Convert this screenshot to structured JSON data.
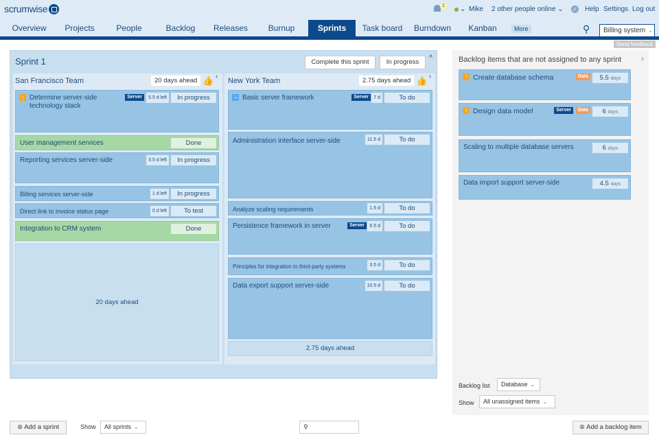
{
  "app": {
    "logo": "scrumwise",
    "notifications": "1",
    "user": "Mike",
    "online": "2 other people online",
    "help": "Help",
    "settings": "Settings",
    "logout": "Log out",
    "project": "Billing system",
    "feedback": "Send feedback",
    "more": "More"
  },
  "tabs": [
    "Overview",
    "Projects",
    "People",
    "Backlog",
    "Releases",
    "Burnup",
    "Sprints",
    "Task board",
    "Burndown",
    "Kanban"
  ],
  "sprint": {
    "title": "Sprint 1",
    "complete_btn": "Complete this sprint",
    "status": "In progress",
    "teams": [
      {
        "name": "San Francisco Team",
        "ahead": "20 days ahead",
        "footer": "20 days ahead",
        "items": [
          {
            "title": "Determine server-side technology stack",
            "tag": "Server",
            "est": "5.5 d left",
            "status": "In progress"
          },
          {
            "title": "User management services",
            "status": "Done"
          },
          {
            "title": "Reporting services server-side",
            "est": "3.5 d left",
            "status": "In progress"
          },
          {
            "title": "Billing services server-side",
            "est": "1 d left",
            "status": "In progress"
          },
          {
            "title": "Direct link to invoice status page",
            "est": "0 d left",
            "status": "To test"
          },
          {
            "title": "Integration to CRM system",
            "status": "Done"
          }
        ]
      },
      {
        "name": "New York Team",
        "ahead": "2.75 days ahead",
        "footer": "2.75 days ahead",
        "items": [
          {
            "title": "Basic server framework",
            "tag": "Server",
            "est": "7 d",
            "status": "To do"
          },
          {
            "title": "Administration interface server-side",
            "est": "11.5 d",
            "status": "To do"
          },
          {
            "title": "Analyze scaling requirements",
            "est": "1.5 d",
            "status": "To do"
          },
          {
            "title": "Persistence framework in server",
            "tag": "Server",
            "est": "6.5 d",
            "status": "To do"
          },
          {
            "title": "Principles for integration to third-party systems",
            "est": "3.5 d",
            "status": "To do"
          },
          {
            "title": "Data export support server-side",
            "est": "10.5 d",
            "status": "To do"
          }
        ]
      }
    ]
  },
  "backlog": {
    "title": "Backlog items that are not assigned to any sprint",
    "days_unit": "days",
    "items": [
      {
        "title": "Create database schema",
        "tags": [
          "Data"
        ],
        "days": "5.5"
      },
      {
        "title": "Design data model",
        "tags": [
          "Server",
          "Data"
        ],
        "days": "6"
      },
      {
        "title": "Scaling to multiple database servers",
        "days": "6"
      },
      {
        "title": "Data import support server-side",
        "days": "4.5"
      }
    ],
    "list_label": "Backlog list",
    "list_value": "Database",
    "show_label": "Show",
    "show_value": "All unassigned items"
  },
  "footer": {
    "add_sprint": "Add a sprint",
    "show_label": "Show",
    "show_value": "All sprints",
    "search_placeholder": "",
    "add_item": "Add a backlog item"
  }
}
